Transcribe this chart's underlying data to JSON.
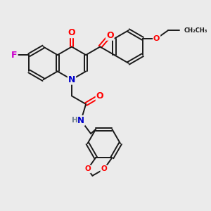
{
  "background_color": "#ebebeb",
  "bond_color": "#1a1a1a",
  "atom_colors": {
    "O": "#ff0000",
    "N": "#0000cc",
    "F": "#cc00cc",
    "NH": "#708090",
    "C": "#1a1a1a"
  },
  "figsize": [
    3.0,
    3.0
  ],
  "dpi": 100
}
